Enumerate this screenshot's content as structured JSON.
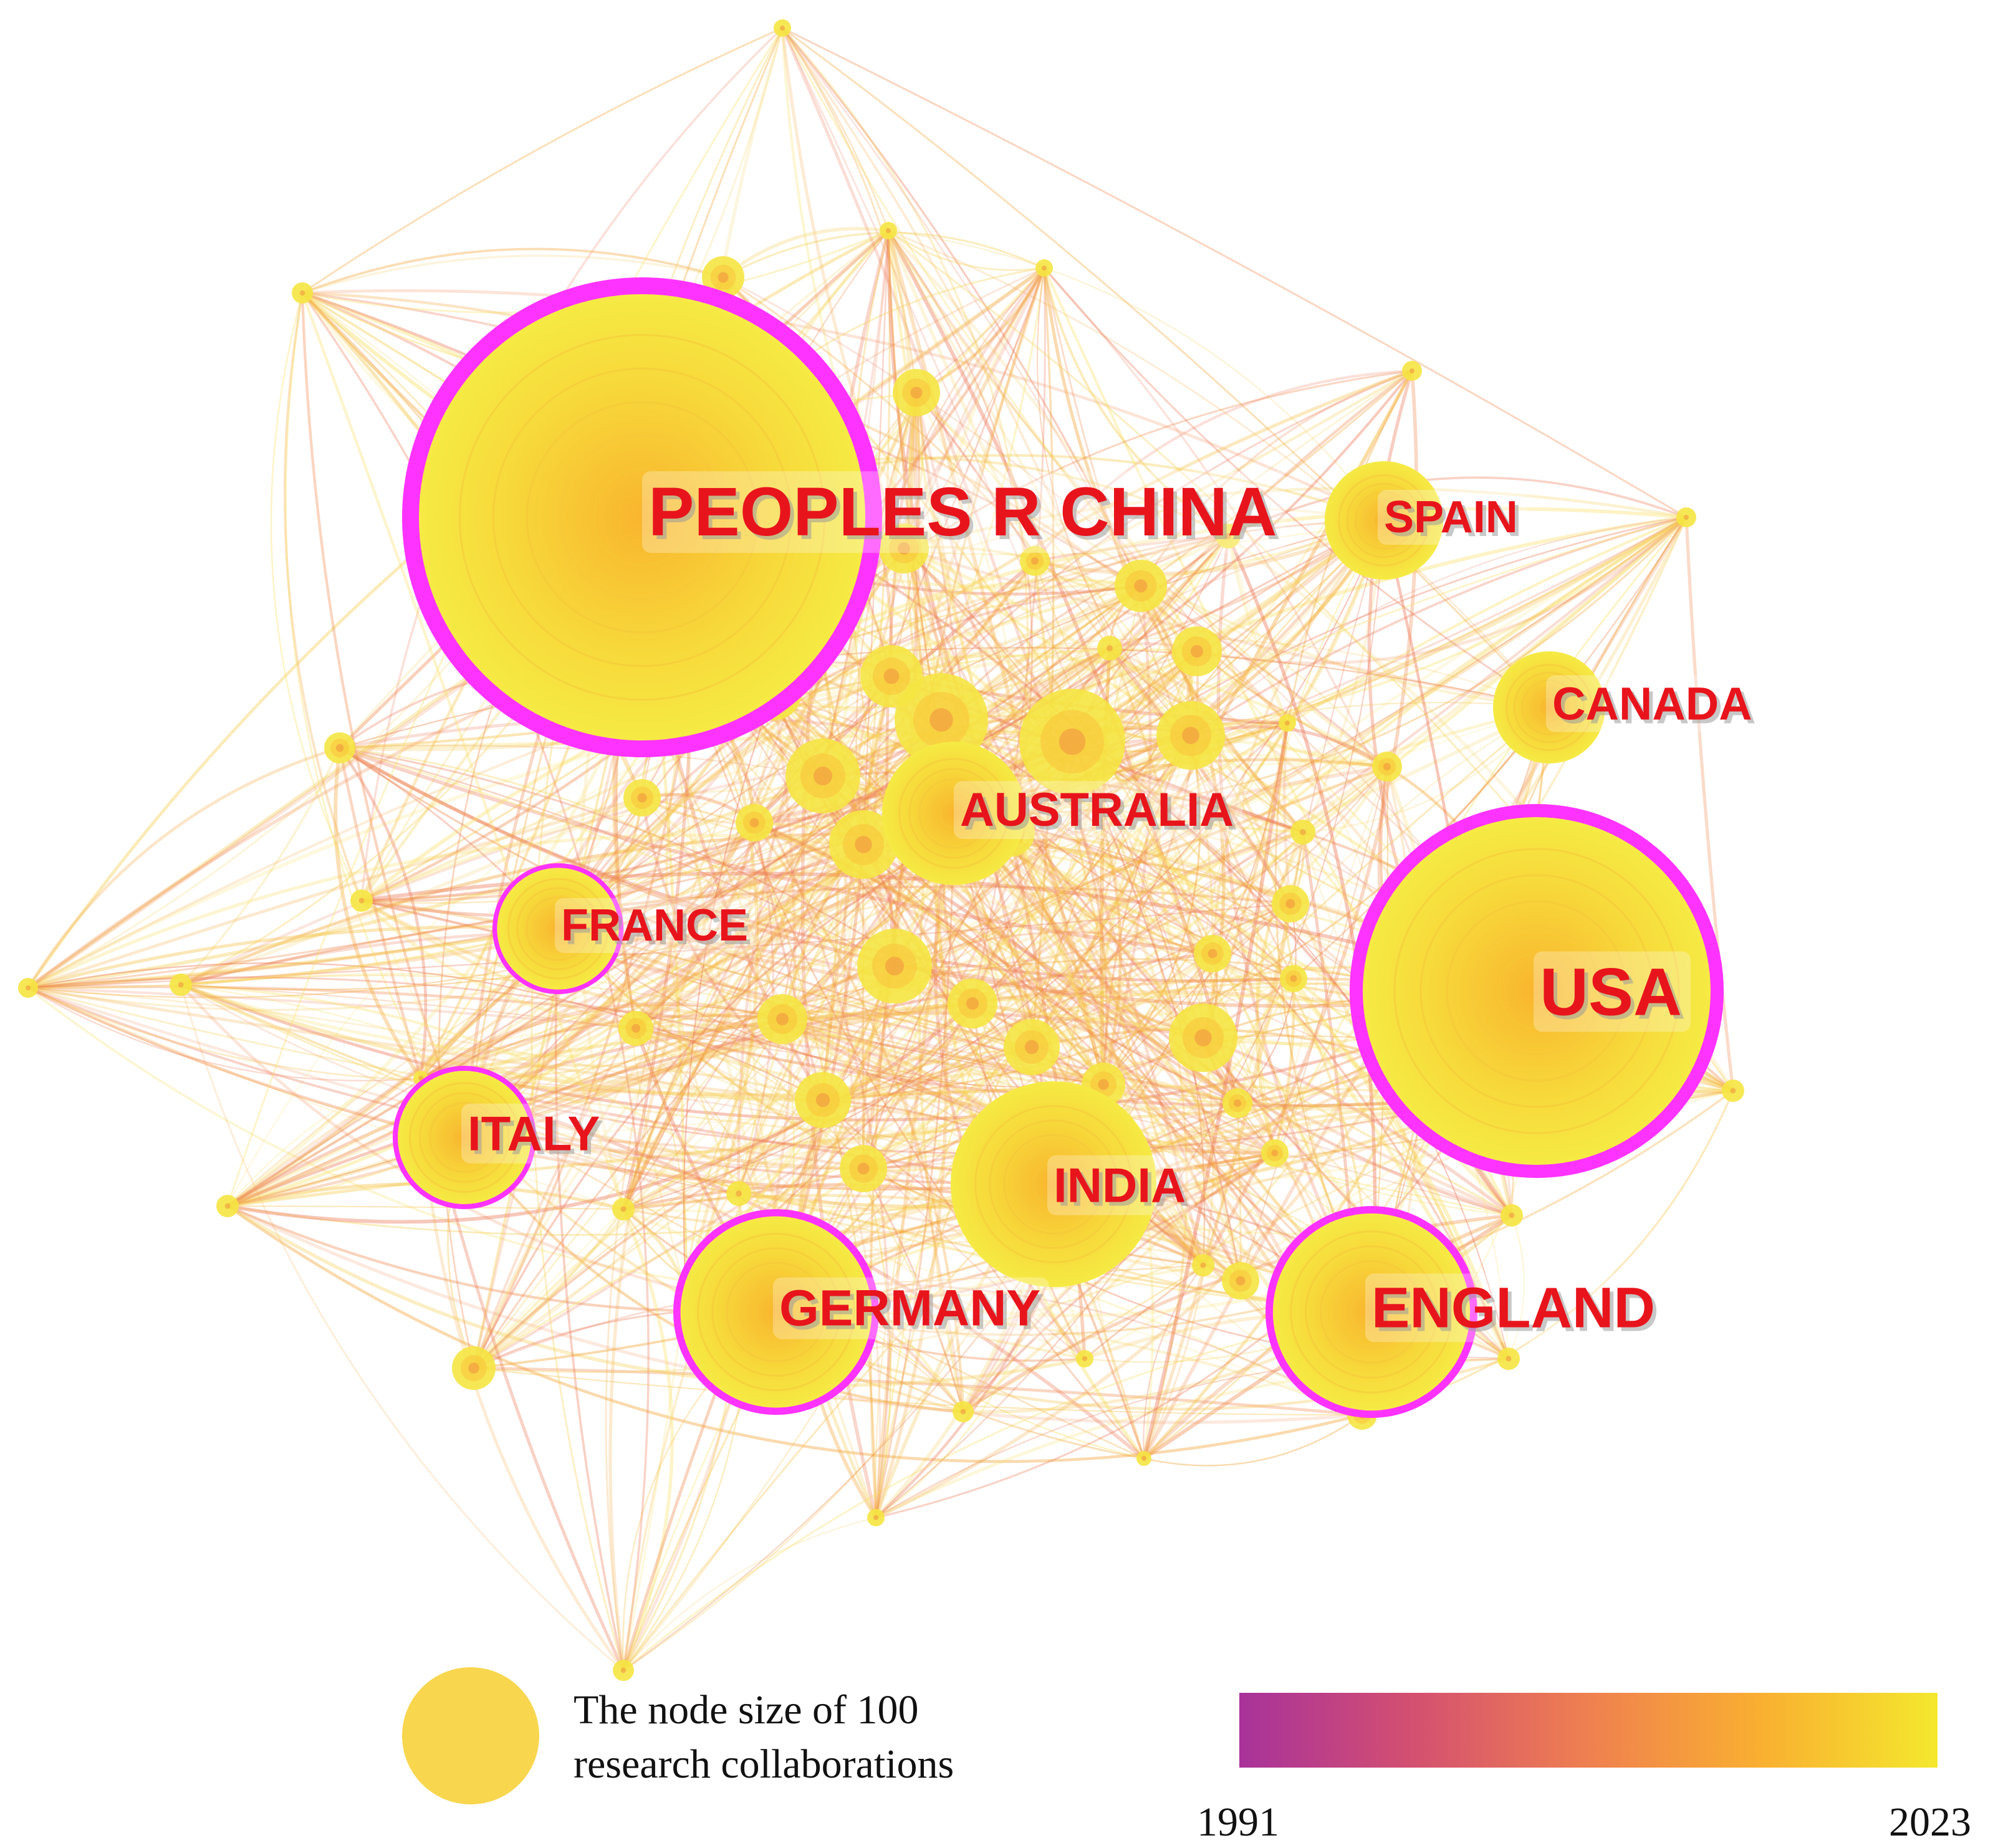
{
  "network": {
    "countries": [
      {
        "id": "china",
        "label": "PEOPLES R CHINA",
        "centrality_ring": true
      },
      {
        "id": "usa",
        "label": "USA",
        "centrality_ring": true
      },
      {
        "id": "england",
        "label": "ENGLAND",
        "centrality_ring": true
      },
      {
        "id": "germany",
        "label": "GERMANY",
        "centrality_ring": true
      },
      {
        "id": "italy",
        "label": "ITALY",
        "centrality_ring": true
      },
      {
        "id": "france",
        "label": "FRANCE",
        "centrality_ring": true
      },
      {
        "id": "india",
        "label": "INDIA",
        "centrality_ring": false
      },
      {
        "id": "australia",
        "label": "AUSTRALIA",
        "centrality_ring": false
      },
      {
        "id": "canada",
        "label": "CANADA",
        "centrality_ring": false
      },
      {
        "id": "spain",
        "label": "SPAIN",
        "centrality_ring": false
      }
    ],
    "colors": {
      "centrality_ring": "#ff33ff",
      "node_fill": "#f5e642",
      "label": "#e8141c",
      "label_shadow": "#9a9a9a",
      "edge": "#f4a63a"
    }
  },
  "legend": {
    "size_line1": "The node size of 100",
    "size_line2": "research collaborations",
    "size_node_color": "#f8d64e",
    "timeline_start": "1991",
    "timeline_end": "2023",
    "gradient_colors": [
      "#a8329a",
      "#d45070",
      "#ef8050",
      "#f9b030",
      "#f4e82e"
    ]
  }
}
